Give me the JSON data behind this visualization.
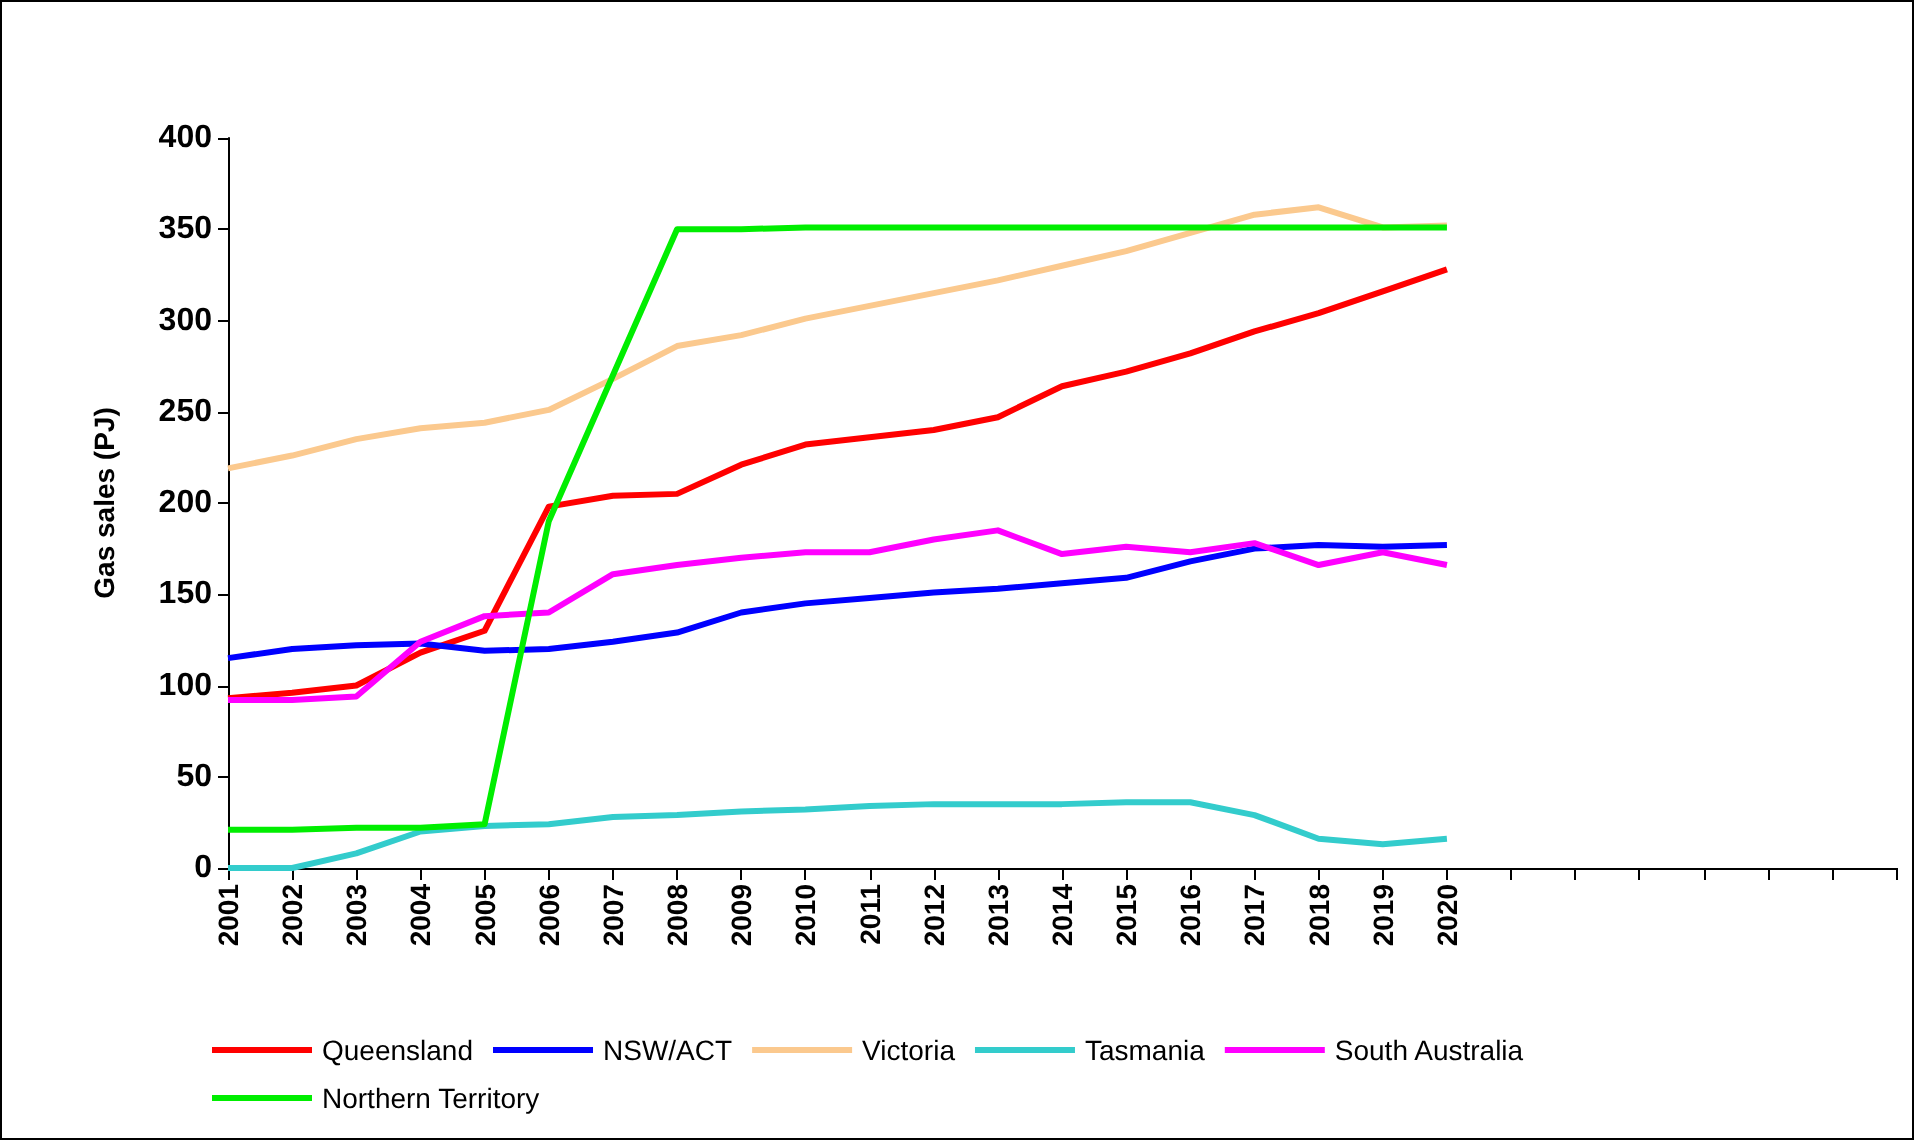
{
  "chart_data": {
    "type": "line",
    "ylabel": "Gas sales (PJ)",
    "categories": [
      "2001",
      "2002",
      "2003",
      "2004",
      "2005",
      "2006",
      "2007",
      "2008",
      "2009",
      "2010",
      "2011",
      "2012",
      "2013",
      "2014",
      "2015",
      "2016",
      "2017",
      "2018",
      "2019",
      "2020",
      null,
      null,
      null,
      null,
      null,
      null,
      null
    ],
    "series": [
      {
        "name": "Queensland",
        "color": "#ff0000",
        "values": [
          93,
          96,
          100,
          118,
          130,
          198,
          204,
          205,
          221,
          232,
          236,
          240,
          247,
          264,
          272,
          282,
          294,
          304,
          316,
          328,
          null,
          null,
          null,
          null,
          null,
          null,
          null
        ]
      },
      {
        "name": "NSW/ACT",
        "color": "#0000ff",
        "values": [
          115,
          120,
          122,
          123,
          119,
          120,
          124,
          129,
          140,
          145,
          148,
          151,
          153,
          156,
          159,
          168,
          175,
          177,
          176,
          177,
          null,
          null,
          null,
          null,
          null,
          null,
          null
        ]
      },
      {
        "name": "Victoria",
        "color": "#fbc98e",
        "values": [
          219,
          226,
          235,
          241,
          244,
          251,
          268,
          286,
          292,
          301,
          308,
          315,
          322,
          330,
          338,
          348,
          358,
          362,
          351,
          352,
          null,
          null,
          null,
          null,
          null,
          null,
          null
        ]
      },
      {
        "name": "Tasmania",
        "color": "#33cccc",
        "values": [
          0,
          0,
          8,
          20,
          23,
          24,
          28,
          29,
          31,
          32,
          34,
          35,
          35,
          35,
          36,
          36,
          29,
          16,
          13,
          16,
          null,
          null,
          null,
          null,
          null,
          null,
          null
        ]
      },
      {
        "name": "South Australia",
        "color": "#ff00ff",
        "values": [
          92,
          92,
          94,
          124,
          138,
          140,
          161,
          166,
          170,
          173,
          173,
          180,
          185,
          172,
          176,
          173,
          178,
          166,
          173,
          166,
          null,
          null,
          null,
          null,
          null,
          null,
          null
        ]
      },
      {
        "name": "Northern Territory",
        "color": "#00ee00",
        "values": [
          21,
          21,
          22,
          22,
          24,
          190,
          270,
          350,
          350,
          351,
          351,
          351,
          351,
          351,
          351,
          351,
          351,
          351,
          351,
          351,
          null,
          null,
          null,
          null,
          null,
          null,
          null
        ]
      }
    ],
    "ylim": [
      0,
      400
    ],
    "yticks": [
      0,
      50,
      100,
      150,
      200,
      250,
      300,
      350,
      400
    ],
    "grid": false,
    "legend": "bottom",
    "marker": "none",
    "line_style": "solid"
  }
}
